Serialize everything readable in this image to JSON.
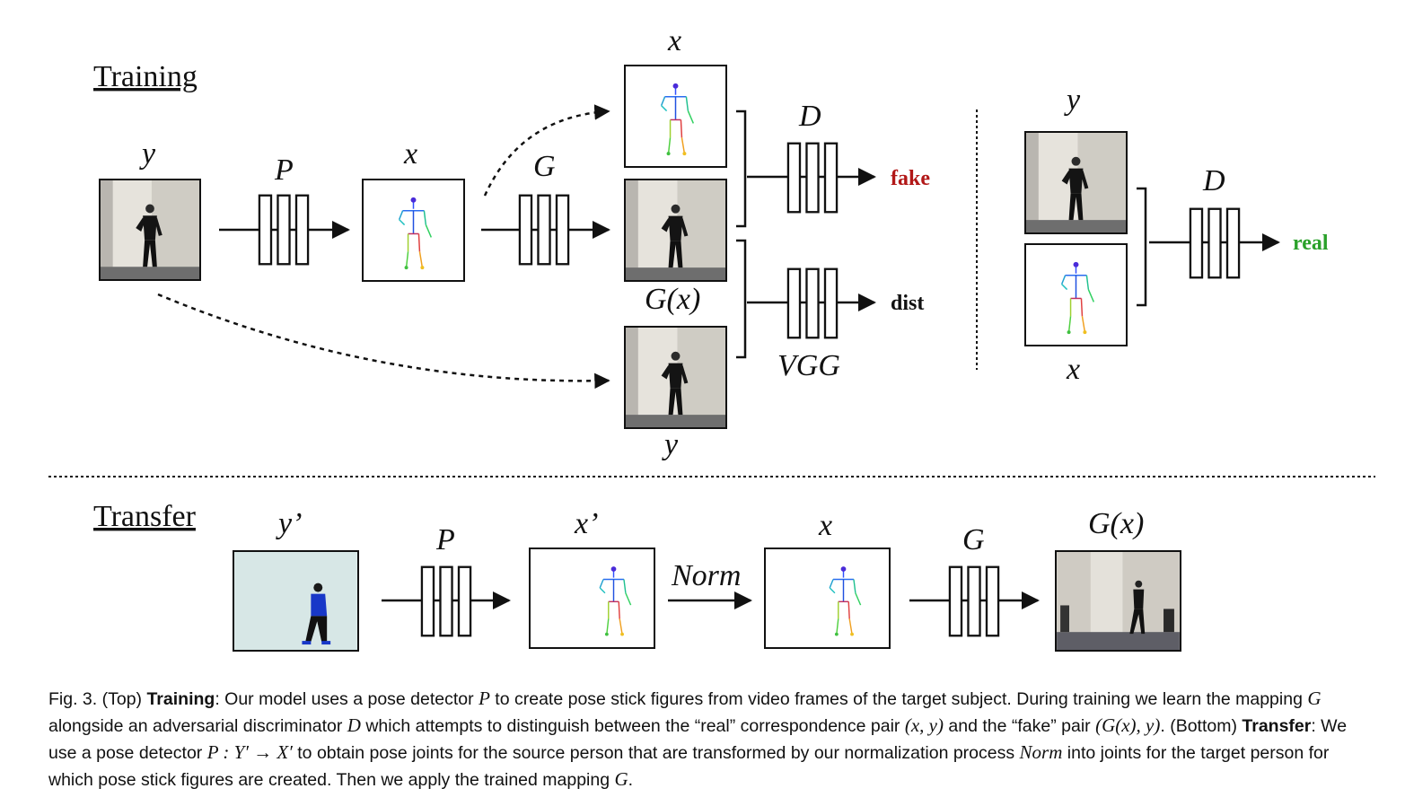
{
  "sections": {
    "training": "Training",
    "transfer": "Transfer"
  },
  "training": {
    "input_label": "y",
    "pose_net_label": "P",
    "pose_label": "x",
    "gen_label": "G",
    "top_pose_label": "x",
    "gen_output_label": "G(x)",
    "bottom_real_label": "y",
    "disc_label": "D",
    "vgg_label": "VGG",
    "fake_label": "fake",
    "dist_label": "dist",
    "real_pair_top_label": "y",
    "real_pair_bottom_label": "x",
    "real_disc_label": "D",
    "real_label": "real"
  },
  "transfer": {
    "source_label": "y’",
    "pose_net_label": "P",
    "source_pose_label": "x’",
    "norm_label": "Norm",
    "target_pose_label": "x",
    "gen_label": "G",
    "output_label": "G(x)"
  },
  "colors": {
    "fake": "#b21818",
    "real": "#2aa12a",
    "text": "#111111"
  },
  "caption": {
    "fig": "Fig. 3.",
    "top": "(Top)",
    "training_title": "Training",
    "s1": ": Our model uses a pose detector ",
    "P": "P",
    "s2": " to create pose stick figures from video frames of the target subject. During training we learn the mapping ",
    "G": "G",
    "s3": " alongside an adversarial discriminator ",
    "D": "D",
    "s4": " which attempts to distinguish between the “real” correspondence pair ",
    "pair_real": "(x, y)",
    "s5": " and the “fake” pair ",
    "pair_fake": "(G(x), y)",
    "s6": ". (Bottom) ",
    "transfer_title": "Transfer",
    "s7": ": We use a pose detector ",
    "map": "P : Y′ → X′",
    "s8": " to obtain pose joints for the source person that are transformed by our normalization process ",
    "Norm": "Norm",
    "s9": " into joints for the target person for which pose stick figures are created. Then we apply the trained mapping ",
    "G2": "G",
    "s10": "."
  }
}
